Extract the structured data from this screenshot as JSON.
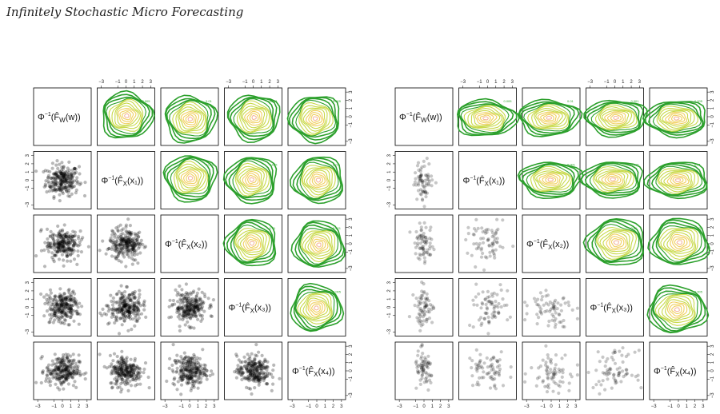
{
  "header": {
    "running_title": "Infinitely Stochastic Micro Forecasting"
  },
  "figure": {
    "axis_ticks": [
      "−3",
      "−1",
      "0",
      "1",
      "2",
      "3"
    ],
    "variable_labels": [
      {
        "main": "Φ",
        "sup": "−1",
        "open": "(F̂",
        "sub": "W",
        "arg": "(w))"
      },
      {
        "main": "Φ",
        "sup": "−1",
        "open": "(F̂",
        "sub": "X",
        "arg": "(x₁))"
      },
      {
        "main": "Φ",
        "sup": "−1",
        "open": "(F̂",
        "sub": "X",
        "arg": "(x₂))"
      },
      {
        "main": "Φ",
        "sup": "−1",
        "open": "(F̂",
        "sub": "X",
        "arg": "(x₃))"
      },
      {
        "main": "Φ",
        "sup": "−1",
        "open": "(F̂",
        "sub": "X",
        "arg": "(x₄))"
      }
    ],
    "contour_labels": [
      "0.001",
      "0.005",
      "0.01"
    ],
    "colors": {
      "frame": "#000000",
      "contour_outer": "#2ca02c",
      "contour_mid": "#c8d94a",
      "contour_inner": "#f0d060",
      "contour_core": "#f4b8a0",
      "points": "#000000"
    },
    "panels": [
      {
        "name": "left-pairs-plot",
        "n_points": 240,
        "spread": 1.0
      },
      {
        "name": "right-pairs-plot",
        "n_points": 70,
        "spread": 1.25
      }
    ]
  }
}
